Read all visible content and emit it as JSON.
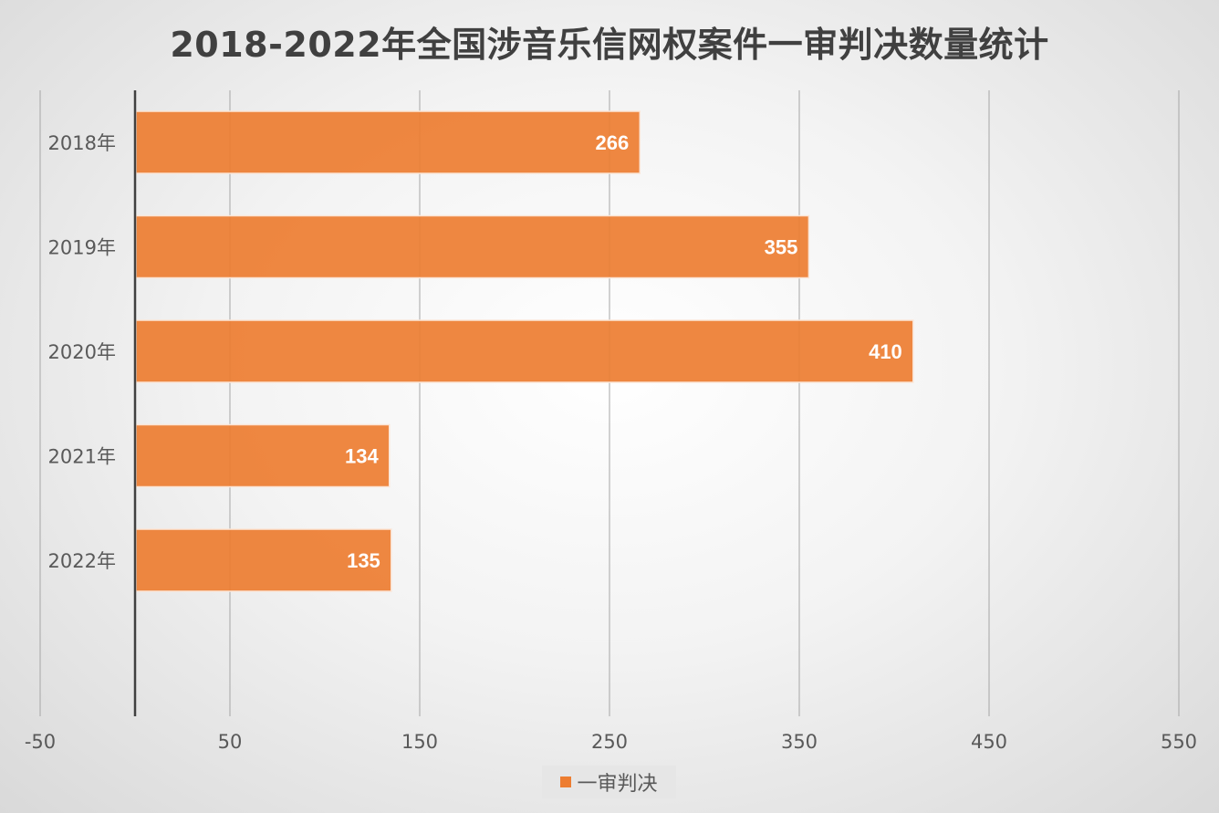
{
  "chart_data": {
    "type": "bar",
    "orientation": "horizontal",
    "title": "2018-2022年全国涉音乐信网权案件一审判决数量统计",
    "categories": [
      "2018年",
      "2019年",
      "2020年",
      "2021年",
      "2022年"
    ],
    "series": [
      {
        "name": "一审判决",
        "values": [
          266,
          355,
          410,
          134,
          135
        ],
        "color": "#ed7d31"
      }
    ],
    "data_labels": [
      "266",
      "355",
      "410",
      "134",
      "135"
    ],
    "x_ticks": [
      -50,
      50,
      150,
      250,
      350,
      450,
      550
    ],
    "x_tick_labels": [
      "-50",
      "50",
      "150",
      "250",
      "350",
      "450",
      "550"
    ],
    "xlim": [
      -50,
      550
    ],
    "grid": true,
    "legend_position": "bottom",
    "xlabel": "",
    "ylabel": ""
  }
}
